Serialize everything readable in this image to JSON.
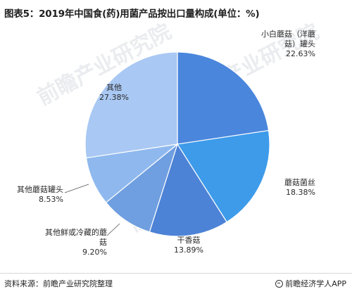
{
  "title": "图表5：2019年中国食(药)用菌产品按出口量构成(单位：%)",
  "source": "资料来源：前瞻产业研究院整理",
  "brand": "前瞻经济学人APP",
  "watermark": "前瞻产业研究院",
  "chart_data": {
    "type": "pie",
    "title": "图表5：2019年中国食(药)用菌产品按出口量构成(单位：%)",
    "unit": "%",
    "start": "12 o'clock, clockwise",
    "slices": [
      {
        "label_lines": [
          "小白蘑菇（洋蘑",
          "菇）罐头"
        ],
        "value": 22.63,
        "value_text": "22.63%",
        "color": "#4a86dc"
      },
      {
        "label_lines": [
          "蘑菇菌丝"
        ],
        "value": 18.38,
        "value_text": "18.38%",
        "color": "#3d9bea"
      },
      {
        "label_lines": [
          "干香菇"
        ],
        "value": 13.89,
        "value_text": "13.89%",
        "color": "#4d83d6"
      },
      {
        "label_lines": [
          "其他鲜或冷藏的蘑",
          "菇"
        ],
        "value": 9.2,
        "value_text": "9.20%",
        "color": "#6f9fe0"
      },
      {
        "label_lines": [
          "其他蘑菇罐头"
        ],
        "value": 8.53,
        "value_text": "8.53%",
        "color": "#8fb9ee"
      },
      {
        "label_lines": [
          "其他"
        ],
        "value": 27.38,
        "value_text": "27.38%",
        "color": "#a9c8f3"
      }
    ]
  }
}
